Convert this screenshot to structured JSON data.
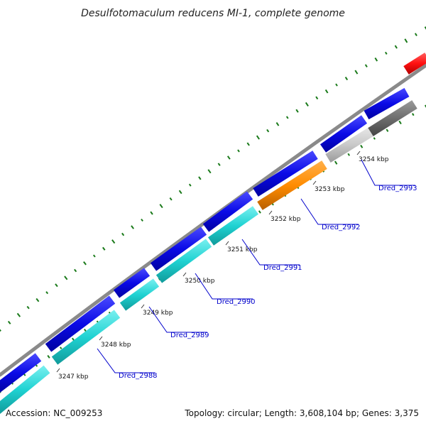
{
  "title": "Desulfotomaculum reducens MI-1, complete genome",
  "footer": {
    "accession": "Accession: NC_009253",
    "summary": "Topology: circular; Length: 3,608,104 bp; Genes: 3,375"
  },
  "colors": {
    "backbone": "#8a8a8a",
    "forward_gene": "#0a0ae6",
    "cds_cyan": "#1fd2d2",
    "cds_orange": "#ff8c00",
    "cds_light_grey": "#c8c8c8",
    "cds_dark_grey": "#6e6e6e",
    "cds_red": "#ff1010",
    "gc_dots": "#1a7a1a",
    "label_blue": "#0000cc"
  },
  "ruler": {
    "ticks": [
      "3247 kbp",
      "3248 kbp",
      "3249 kbp",
      "3250 kbp",
      "3251 kbp",
      "3252 kbp",
      "3253 kbp",
      "3254 kbp"
    ]
  },
  "genes": [
    {
      "id": "Dred_2988"
    },
    {
      "id": "Dred_2989"
    },
    {
      "id": "Dred_2990"
    },
    {
      "id": "Dred_2991"
    },
    {
      "id": "Dred_2992"
    },
    {
      "id": "Dred_2993"
    }
  ]
}
